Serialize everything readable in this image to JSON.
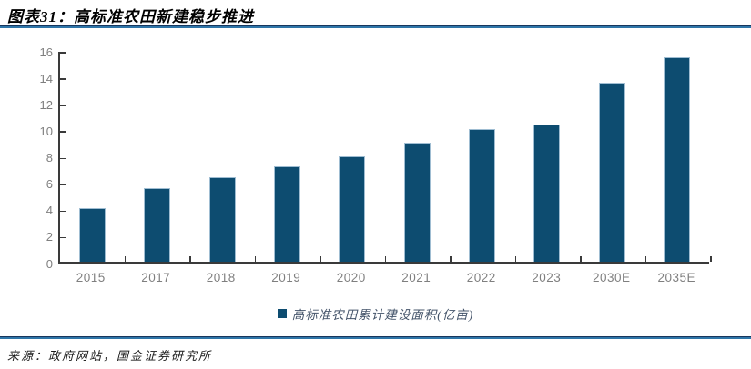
{
  "header": {
    "title": "图表31：高标准农田新建稳步推进"
  },
  "footer": {
    "source": "来源：政府网站，国金证券研究所"
  },
  "colors": {
    "bar": "#0d4c70",
    "rule_blue": "#2e75a8",
    "rule_dark": "#17365d",
    "axis": "#3a3a3a",
    "tick_label": "#7f7f7f",
    "legend_text": "#44546a"
  },
  "chart_data": {
    "type": "bar",
    "title": "图表31：高标准农田新建稳步推进",
    "categories": [
      "2015",
      "2017",
      "2018",
      "2019",
      "2020",
      "2021",
      "2022",
      "2023",
      "2030E",
      "2035E"
    ],
    "values": [
      4.03,
      5.6,
      6.4,
      7.2,
      8.0,
      9.0,
      10.0,
      10.4,
      13.5,
      15.46
    ],
    "series_name": "高标准农田累计建设面积(亿亩)",
    "legend_label": "■高标准农田累计建设面积(亿亩)",
    "legend_text": "高标准农田累计建设面积(亿亩)",
    "unit": "亿亩",
    "xlabel": "",
    "ylabel": "",
    "ylim": [
      0,
      16
    ],
    "yticks": [
      0,
      2,
      4,
      6,
      8,
      10,
      12,
      14,
      16
    ],
    "grid": false,
    "legend_position": "bottom-center",
    "bar_color": "#0d4c70"
  }
}
